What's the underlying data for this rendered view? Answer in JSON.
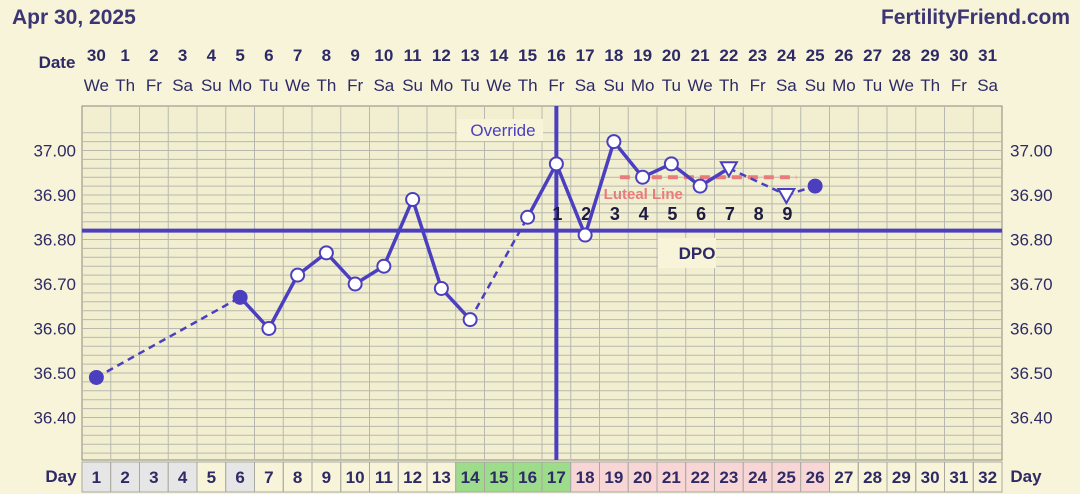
{
  "header": {
    "chart_date": "Apr 30, 2025",
    "site": "FertilityFriend.com"
  },
  "labels": {
    "date_row": "Date",
    "day_row": "Day",
    "override": "Override",
    "dpo": "DPO",
    "luteal_line": "Luteal Line"
  },
  "colors": {
    "background": "#f7f4d9",
    "line": "#4b3fbf",
    "grid": "#b8b8b0",
    "luteal": "#e87c7c",
    "fertile_cell": "#9ddc8a",
    "luteal_cell": "#f8d6d6"
  },
  "date_numbers": [
    "30",
    "1",
    "2",
    "3",
    "4",
    "5",
    "6",
    "7",
    "8",
    "9",
    "10",
    "11",
    "12",
    "13",
    "14",
    "15",
    "16",
    "17",
    "18",
    "19",
    "20",
    "21",
    "22",
    "23",
    "24",
    "25",
    "26",
    "27",
    "28",
    "29",
    "30",
    "31"
  ],
  "weekdays": [
    "We",
    "Th",
    "Fr",
    "Sa",
    "Su",
    "Mo",
    "Tu",
    "We",
    "Th",
    "Fr",
    "Sa",
    "Su",
    "Mo",
    "Tu",
    "We",
    "Th",
    "Fr",
    "Sa",
    "Su",
    "Mo",
    "Tu",
    "We",
    "Th",
    "Fr",
    "Sa",
    "Su",
    "Mo",
    "Tu",
    "We",
    "Th",
    "Fr",
    "Sa"
  ],
  "day_cells": [
    {
      "label": "1",
      "kind": "normal"
    },
    {
      "label": "2",
      "kind": "normal"
    },
    {
      "label": "3",
      "kind": "normal"
    },
    {
      "label": "4",
      "kind": "normal"
    },
    {
      "label": "5",
      "kind": "plain"
    },
    {
      "label": "6",
      "kind": "normal"
    },
    {
      "label": "7",
      "kind": "plain"
    },
    {
      "label": "8",
      "kind": "plain"
    },
    {
      "label": "9",
      "kind": "plain"
    },
    {
      "label": "10",
      "kind": "plain"
    },
    {
      "label": "11",
      "kind": "plain"
    },
    {
      "label": "12",
      "kind": "plain"
    },
    {
      "label": "13",
      "kind": "plain"
    },
    {
      "label": "14",
      "kind": "fertile"
    },
    {
      "label": "15",
      "kind": "fertile"
    },
    {
      "label": "16",
      "kind": "fertile"
    },
    {
      "label": "17",
      "kind": "fertile"
    },
    {
      "label": "18",
      "kind": "luteal"
    },
    {
      "label": "19",
      "kind": "luteal"
    },
    {
      "label": "20",
      "kind": "luteal"
    },
    {
      "label": "21",
      "kind": "luteal"
    },
    {
      "label": "22",
      "kind": "luteal"
    },
    {
      "label": "23",
      "kind": "luteal"
    },
    {
      "label": "24",
      "kind": "luteal"
    },
    {
      "label": "25",
      "kind": "luteal"
    },
    {
      "label": "26",
      "kind": "luteal"
    },
    {
      "label": "27",
      "kind": "plain"
    },
    {
      "label": "28",
      "kind": "plain"
    },
    {
      "label": "29",
      "kind": "plain"
    },
    {
      "label": "30",
      "kind": "plain"
    },
    {
      "label": "31",
      "kind": "plain"
    },
    {
      "label": "32",
      "kind": "plain"
    }
  ],
  "chart_data": {
    "type": "line",
    "ylim": [
      36.35,
      37.05
    ],
    "y_ticks": [
      "37.00",
      "36.90",
      "36.80",
      "36.70",
      "36.60",
      "36.50",
      "36.40"
    ],
    "coverline": 36.82,
    "override_day": 17,
    "dpo_labels": [
      {
        "day": 17,
        "label": "1"
      },
      {
        "day": 18,
        "label": "2"
      },
      {
        "day": 19,
        "label": "3"
      },
      {
        "day": 20,
        "label": "4"
      },
      {
        "day": 21,
        "label": "5"
      },
      {
        "day": 22,
        "label": "6"
      },
      {
        "day": 23,
        "label": "7"
      },
      {
        "day": 24,
        "label": "8"
      },
      {
        "day": 25,
        "label": "9"
      }
    ],
    "luteal_line": {
      "from_day": 19,
      "to_day": 25,
      "value": 36.94
    },
    "temperatures": [
      {
        "day": 1,
        "value": 36.49,
        "marker": "filled"
      },
      {
        "day": 6,
        "value": 36.67,
        "marker": "filled"
      },
      {
        "day": 7,
        "value": 36.6,
        "marker": "open"
      },
      {
        "day": 8,
        "value": 36.72,
        "marker": "open"
      },
      {
        "day": 9,
        "value": 36.77,
        "marker": "open"
      },
      {
        "day": 10,
        "value": 36.7,
        "marker": "open"
      },
      {
        "day": 11,
        "value": 36.74,
        "marker": "open"
      },
      {
        "day": 12,
        "value": 36.89,
        "marker": "open"
      },
      {
        "day": 13,
        "value": 36.69,
        "marker": "open"
      },
      {
        "day": 14,
        "value": 36.62,
        "marker": "open"
      },
      {
        "day": 16,
        "value": 36.85,
        "marker": "open"
      },
      {
        "day": 17,
        "value": 36.97,
        "marker": "open"
      },
      {
        "day": 18,
        "value": 36.81,
        "marker": "open"
      },
      {
        "day": 19,
        "value": 37.02,
        "marker": "open"
      },
      {
        "day": 20,
        "value": 36.94,
        "marker": "open"
      },
      {
        "day": 21,
        "value": 36.97,
        "marker": "open"
      },
      {
        "day": 22,
        "value": 36.92,
        "marker": "open"
      },
      {
        "day": 23,
        "value": 36.96,
        "marker": "open-triangle"
      },
      {
        "day": 25,
        "value": 36.9,
        "marker": "open-triangle"
      },
      {
        "day": 26,
        "value": 36.92,
        "marker": "filled"
      }
    ],
    "segments": [
      {
        "from": 1,
        "to": 6,
        "style": "dashed"
      },
      {
        "from": 6,
        "to": 7,
        "style": "solid"
      },
      {
        "from": 7,
        "to": 8,
        "style": "solid"
      },
      {
        "from": 8,
        "to": 9,
        "style": "solid"
      },
      {
        "from": 9,
        "to": 10,
        "style": "solid"
      },
      {
        "from": 10,
        "to": 11,
        "style": "solid"
      },
      {
        "from": 11,
        "to": 12,
        "style": "solid"
      },
      {
        "from": 12,
        "to": 13,
        "style": "solid"
      },
      {
        "from": 13,
        "to": 14,
        "style": "solid"
      },
      {
        "from": 14,
        "to": 16,
        "style": "dashed"
      },
      {
        "from": 16,
        "to": 17,
        "style": "solid"
      },
      {
        "from": 17,
        "to": 18,
        "style": "solid"
      },
      {
        "from": 18,
        "to": 19,
        "style": "solid"
      },
      {
        "from": 19,
        "to": 20,
        "style": "solid"
      },
      {
        "from": 20,
        "to": 21,
        "style": "solid"
      },
      {
        "from": 21,
        "to": 22,
        "style": "solid"
      },
      {
        "from": 22,
        "to": 23,
        "style": "solid"
      },
      {
        "from": 23,
        "to": 25,
        "style": "dashed"
      },
      {
        "from": 25,
        "to": 26,
        "style": "dashed"
      }
    ]
  }
}
